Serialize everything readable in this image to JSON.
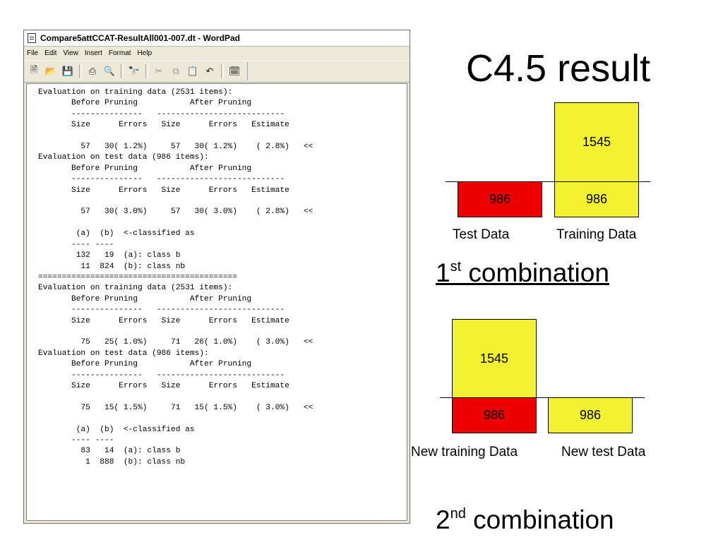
{
  "window": {
    "title": "Compare5attCCAT-ResultAll001-007.dt - WordPad",
    "menu": [
      "File",
      "Edit",
      "View",
      "Insert",
      "Format",
      "Help"
    ],
    "toolbar_icons": [
      "new-icon",
      "open-icon",
      "save-icon",
      "print-icon",
      "print-preview-icon",
      "find-icon",
      "cut-icon",
      "copy-icon",
      "paste-icon",
      "undo-icon",
      "date-time-icon"
    ]
  },
  "document": {
    "lines": [
      "Evaluation on training data (2531 items):",
      "       Before Pruning           After Pruning",
      "       ---------------   ---------------------------",
      "       Size      Errors   Size      Errors   Estimate",
      "",
      "         57   30( 1.2%)     57   30( 1.2%)    ( 2.8%)   <<",
      "Evaluation on test data (986 items):",
      "       Before Pruning           After Pruning",
      "       ---------------   ---------------------------",
      "       Size      Errors   Size      Errors   Estimate",
      "",
      "         57   30( 3.0%)     57   30( 3.0%)    ( 2.8%)   <<",
      "",
      "        (a)  (b)  <-classified as",
      "       ---- ----",
      "        132   19  (a): class b",
      "         11  824  (b): class nb",
      "==========================================",
      "Evaluation on training data (2531 items):",
      "       Before Pruning           After Pruning",
      "       ---------------   ---------------------------",
      "       Size      Errors   Size      Errors   Estimate",
      "",
      "         75   25( 1.0%)     71   26( 1.0%)    ( 3.0%)   <<",
      "Evaluation on test data (986 items):",
      "       Before Pruning           After Pruning",
      "       ---------------   ---------------------------",
      "       Size      Errors   Size      Errors   Estimate",
      "",
      "         75   15( 1.5%)     71   15( 1.5%)    ( 3.0%)   <<",
      "",
      "        (a)  (b)  <-classified as",
      "       ---- ----",
      "         83   14  (a): class b",
      "          1  888  (b): class nb"
    ]
  },
  "slide": {
    "title": "C4.5 result",
    "combo1": {
      "training_top": "1545",
      "training_bottom": "986",
      "test": "986",
      "test_label": "Test Data",
      "training_label": "Training Data",
      "caption_num": "1",
      "caption_sup": "st",
      "caption_text": " combination"
    },
    "combo2": {
      "training_top": "1545",
      "training_bottom": "986",
      "test": "986",
      "training_label": "New training Data",
      "test_label": "New test Data",
      "caption_num": "2",
      "caption_sup": "nd",
      "caption_text": " combination"
    },
    "colors": {
      "yellow": "#f2f230",
      "red": "#ee0000"
    }
  }
}
